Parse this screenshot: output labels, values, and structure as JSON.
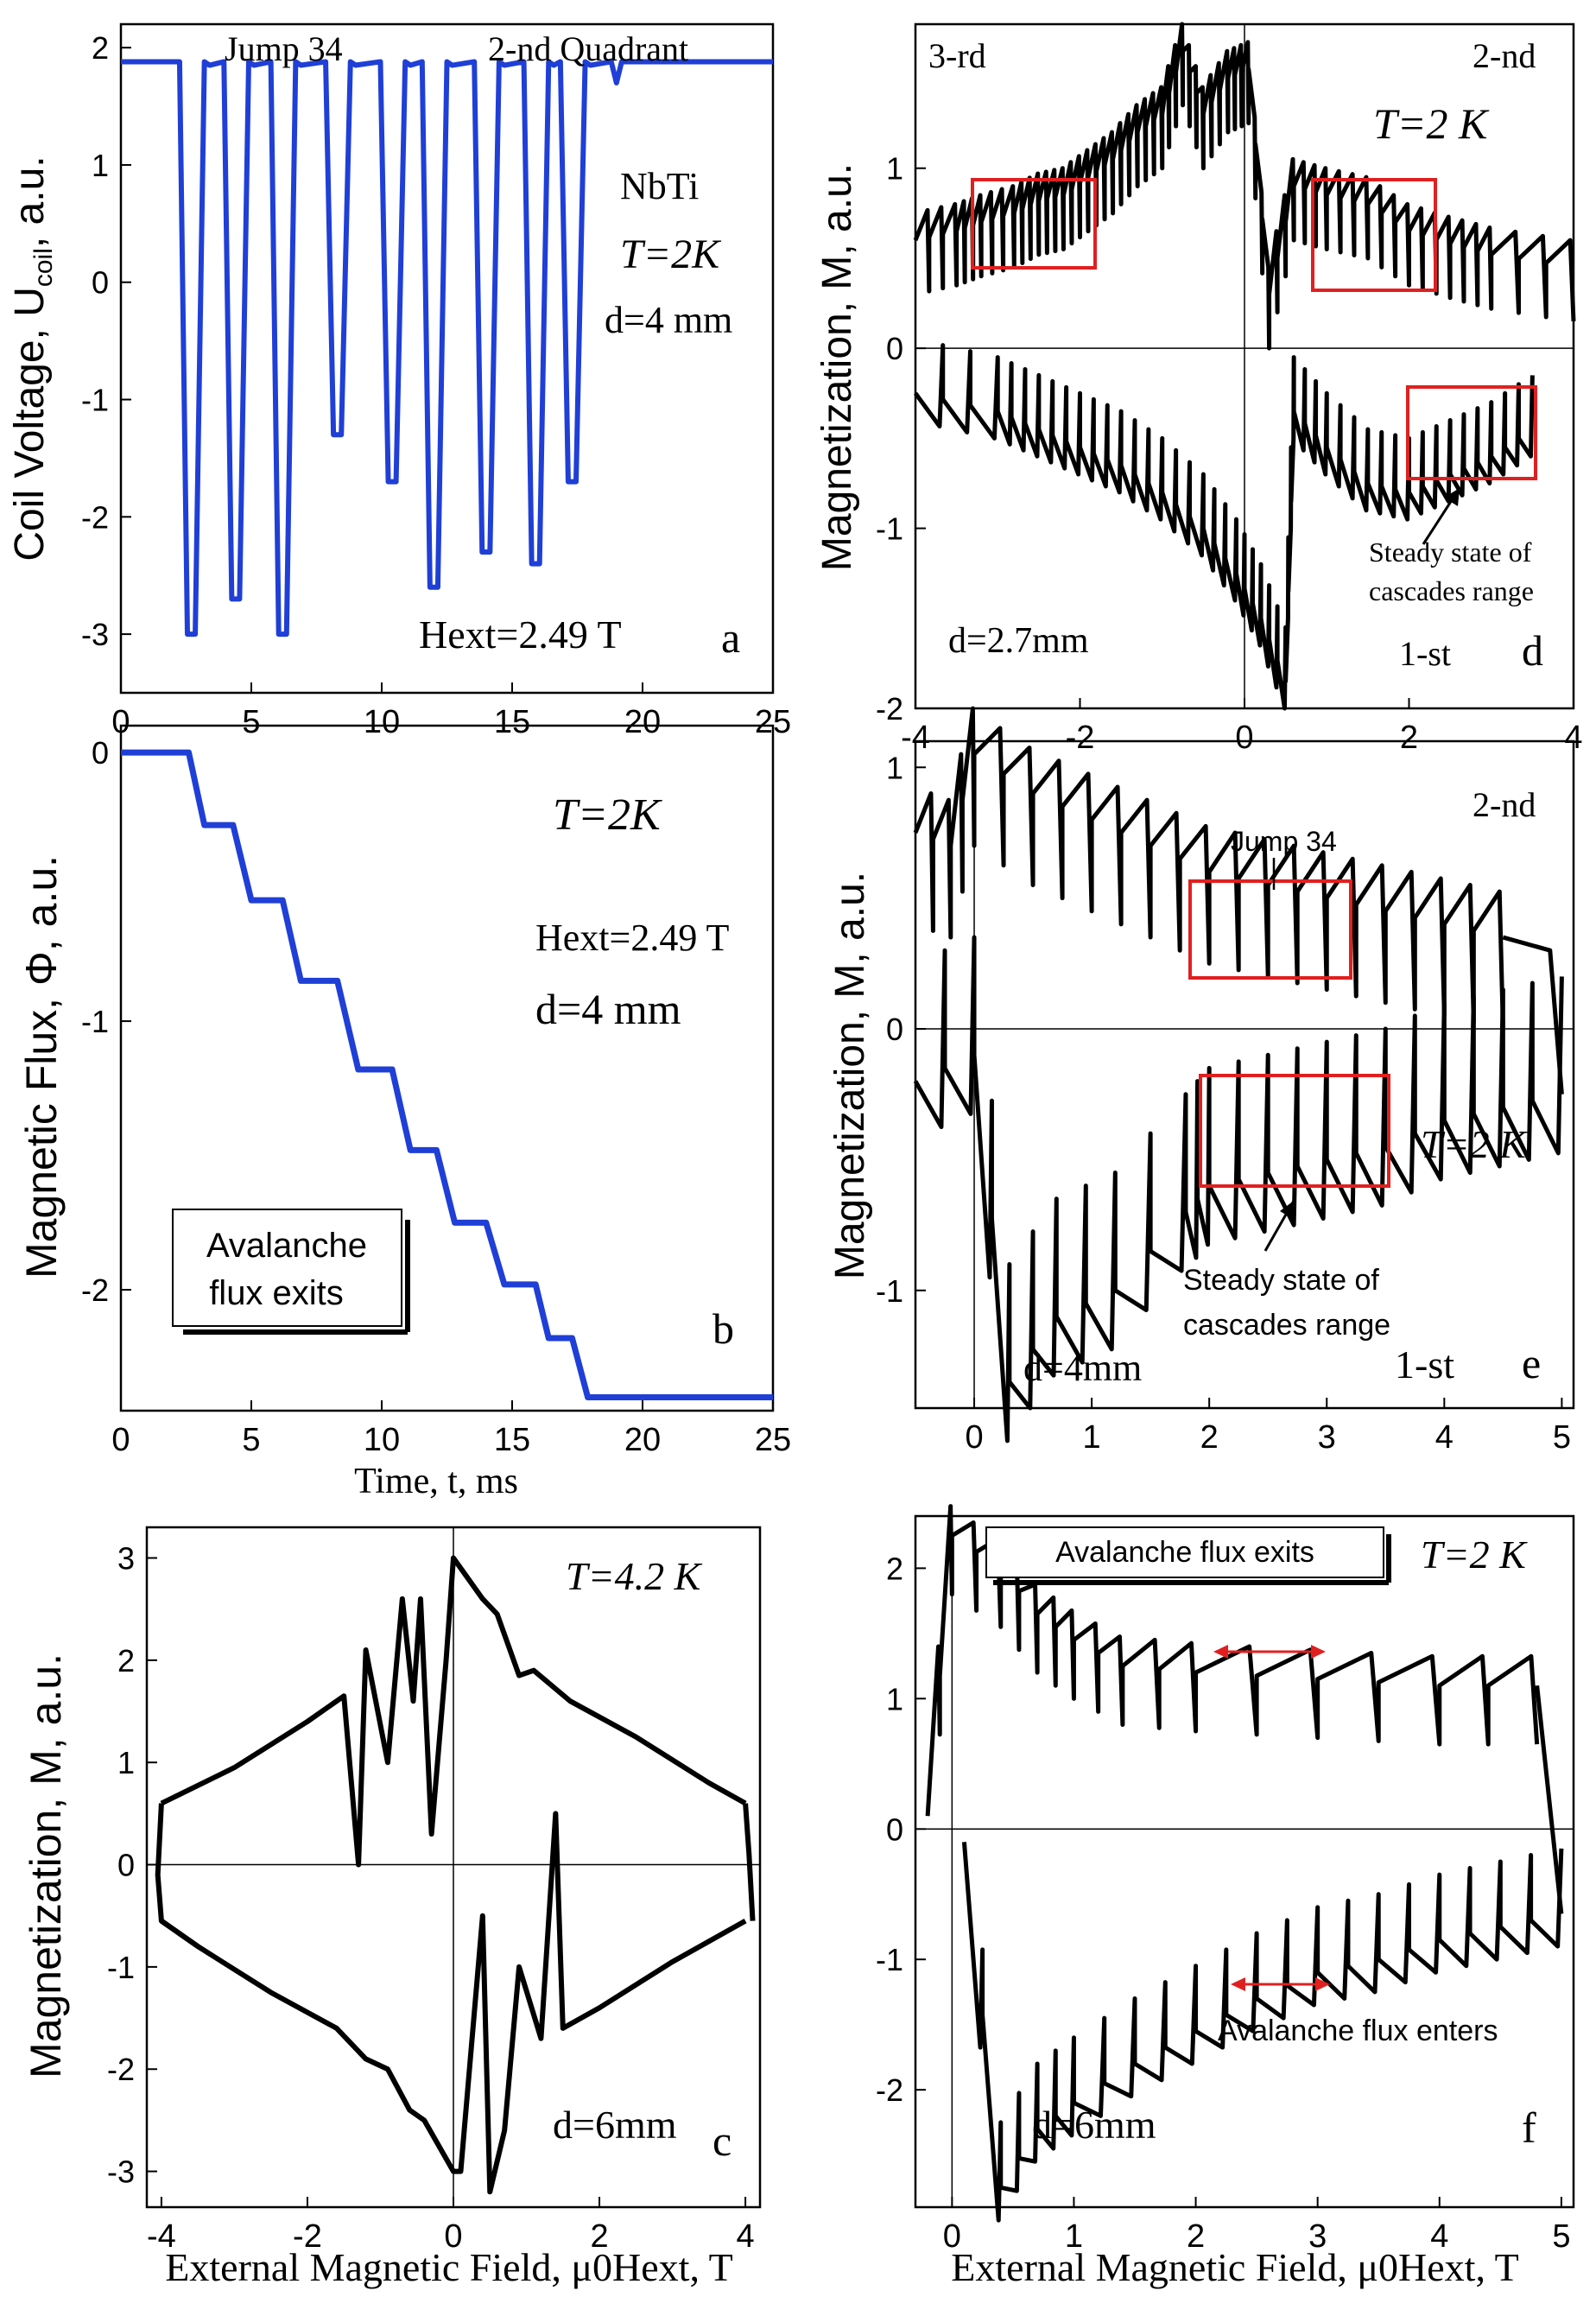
{
  "colors": {
    "blue": "#1f3fd6",
    "black": "#000000",
    "red": "#e02020"
  },
  "chart_data": [
    {
      "id": "a",
      "type": "line",
      "panel_letter": "a",
      "xlim": [
        0,
        25
      ],
      "ylim": [
        -3.5,
        2.2
      ],
      "xticks": [
        "0",
        "5",
        "10",
        "15",
        "20",
        "25"
      ],
      "yticks": [
        "-3",
        "-2",
        "-1",
        "0",
        "1",
        "2"
      ],
      "ylabel": "Coil Voltage, U",
      "ylabel_sub": "coil",
      "ylabel_tail": ", a.u.",
      "annotations": [
        "Jump 34",
        "2-nd Quadrant",
        "NbTi",
        "T=2K",
        "d=4 mm",
        "Hext=2.49 T"
      ],
      "series": [
        {
          "name": "Ucoil",
          "color": "blue",
          "spikes_x": [
            2.7,
            4.4,
            6.2,
            8.3,
            10.4,
            12.0,
            14.0,
            15.9,
            17.3
          ],
          "spikes_y": [
            -3.0,
            -2.7,
            -3.0,
            -1.3,
            -1.7,
            -2.6,
            -2.3,
            -2.4,
            -1.7
          ]
        }
      ]
    },
    {
      "id": "b",
      "type": "line",
      "panel_letter": "b",
      "xlim": [
        0,
        25
      ],
      "ylim": [
        -2.45,
        0.1
      ],
      "xticks": [
        "0",
        "5",
        "10",
        "15",
        "20",
        "25"
      ],
      "yticks": [
        "-2",
        "-1",
        "0"
      ],
      "xlabel": "Time, t, ms",
      "ylabel": "Magnetic Flux, Φ, a.u.",
      "annotations": [
        "T=2K",
        "Hext=2.49 T",
        "d=4 mm"
      ],
      "legend_box": [
        "Avalanche",
        "flux exits"
      ],
      "series": [
        {
          "name": "Phi",
          "color": "blue",
          "x": [
            0,
            2.6,
            3.2,
            4.3,
            5.0,
            6.2,
            6.9,
            8.3,
            9.1,
            10.4,
            11.1,
            12.1,
            12.8,
            14.0,
            14.7,
            15.9,
            16.4,
            17.3,
            17.9,
            25
          ],
          "y": [
            0,
            0,
            -0.27,
            -0.27,
            -0.55,
            -0.55,
            -0.85,
            -0.85,
            -1.18,
            -1.18,
            -1.48,
            -1.48,
            -1.75,
            -1.75,
            -1.98,
            -1.98,
            -2.18,
            -2.18,
            -2.4,
            -2.4
          ]
        }
      ]
    },
    {
      "id": "c",
      "type": "line",
      "panel_letter": "c",
      "xlim": [
        -4.2,
        4.2
      ],
      "ylim": [
        -3.35,
        3.3
      ],
      "xticks": [
        "-4",
        "-2",
        "0",
        "2",
        "4"
      ],
      "yticks": [
        "-3",
        "-2",
        "-1",
        "0",
        "1",
        "2",
        "3"
      ],
      "xlabel": "External Magnetic Field, μ0Hext, T",
      "ylabel": "Magnetization, M, a.u.",
      "annotations": [
        "T=4.2 K",
        "d=6mm"
      ],
      "series": [
        {
          "name": "M(H) loop",
          "color": "black",
          "upper_x": [
            -4.0,
            -3.0,
            -2.0,
            -1.5,
            -1.3,
            -1.2,
            -0.9,
            -0.7,
            -0.55,
            -0.45,
            -0.3,
            -0.1,
            0.0,
            0.4,
            0.6,
            0.9,
            1.1,
            1.6,
            2.5,
            3.5,
            4.0
          ],
          "upper_y": [
            0.6,
            0.95,
            1.4,
            1.65,
            0,
            2.1,
            1.0,
            2.6,
            1.6,
            2.6,
            0.3,
            2.0,
            3.0,
            2.6,
            2.45,
            1.85,
            1.9,
            1.6,
            1.25,
            0.8,
            0.6
          ],
          "lower_x": [
            4.0,
            3.0,
            2.0,
            1.5,
            1.4,
            1.2,
            0.9,
            0.7,
            0.5,
            0.4,
            0.1,
            0.0,
            -0.4,
            -0.6,
            -0.9,
            -1.2,
            -1.6,
            -2.5,
            -3.5,
            -4.0
          ],
          "lower_y": [
            -0.55,
            -0.95,
            -1.4,
            -1.6,
            0.5,
            -1.7,
            -1.0,
            -2.6,
            -3.2,
            -0.5,
            -3.0,
            -3.0,
            -2.5,
            -2.4,
            -2.0,
            -1.9,
            -1.6,
            -1.25,
            -0.8,
            -0.55
          ]
        }
      ]
    },
    {
      "id": "d",
      "type": "line",
      "panel_letter": "d",
      "xlim": [
        -4,
        4
      ],
      "ylim": [
        -2,
        1.8
      ],
      "xticks": [
        "-4",
        "-2",
        "0",
        "2",
        "4"
      ],
      "yticks": [
        "-2",
        "-1",
        "0",
        "1"
      ],
      "ylabel": "Magnetization, M, a.u.",
      "annotations": [
        "3-rd",
        "2-nd",
        "T=2 K",
        "d=2.7mm",
        "1-st",
        "Steady state of",
        "cascades range"
      ],
      "series": [
        {
          "name": "upper",
          "color": "black",
          "x": [
            -4,
            -3.5,
            -3.2,
            -2.8,
            -2.5,
            -2.2,
            -1.9,
            -1.6,
            -1.3,
            -1.0,
            -0.75,
            -0.5,
            -0.2,
            0.05,
            0.3,
            0.6,
            1.0,
            1.5,
            2.0,
            2.5,
            3.0,
            4.0
          ],
          "y": [
            0.6,
            0.65,
            0.7,
            0.75,
            0.82,
            0.85,
            0.95,
            1.05,
            1.2,
            1.3,
            1.65,
            1.3,
            1.5,
            1.55,
            0.3,
            0.9,
            0.85,
            0.8,
            0.65,
            0.58,
            0.52,
            0.45
          ]
        },
        {
          "name": "lower",
          "color": "black",
          "x": [
            -4,
            -3.0,
            -2.5,
            -2.0,
            -1.5,
            -1.0,
            -0.5,
            -0.1,
            0.2,
            0.5,
            0.6,
            1.0,
            1.5,
            2.0,
            2.5,
            3.0,
            3.5
          ],
          "y": [
            -0.25,
            -0.35,
            -0.45,
            -0.55,
            -0.65,
            -0.8,
            -1.0,
            -1.25,
            -1.5,
            -1.85,
            -0.35,
            -0.55,
            -0.75,
            -0.8,
            -0.7,
            -0.6,
            -0.45
          ]
        }
      ],
      "highlight_boxes": 3
    },
    {
      "id": "e",
      "type": "line",
      "panel_letter": "e",
      "xlim": [
        -0.5,
        5.1
      ],
      "ylim": [
        -1.45,
        1.1
      ],
      "xticks": [
        "0",
        "1",
        "2",
        "3",
        "4",
        "5"
      ],
      "yticks": [
        "-1",
        "0",
        "1"
      ],
      "ylabel": "Magnetization, M, a.u.",
      "annotations": [
        "Jump 34",
        "2-nd",
        "T=2 K",
        "Steady state of",
        "cascades range",
        "d=4mm",
        "1-st"
      ],
      "series": [
        {
          "name": "upper",
          "color": "black",
          "x": [
            -0.5,
            -0.2,
            0.0,
            0.5,
            1.0,
            1.5,
            2.0,
            2.5,
            3.0,
            3.5,
            4.0,
            4.5,
            4.9,
            5.0
          ],
          "y": [
            0.75,
            0.7,
            1.05,
            0.9,
            0.8,
            0.7,
            0.6,
            0.55,
            0.5,
            0.45,
            0.4,
            0.35,
            0.3,
            -0.25
          ]
        },
        {
          "name": "lower",
          "color": "black",
          "x": [
            -0.5,
            0.0,
            0.3,
            0.7,
            1.2,
            1.8,
            2.0,
            2.5,
            3.0,
            3.5,
            4.0,
            4.5,
            5.0
          ],
          "y": [
            -0.2,
            -0.1,
            -1.35,
            -1.1,
            -1.0,
            -0.7,
            -0.6,
            -0.55,
            -0.5,
            -0.45,
            -0.35,
            -0.3,
            -0.25
          ]
        }
      ],
      "highlight_boxes": 2
    },
    {
      "id": "f",
      "type": "line",
      "panel_letter": "f",
      "xlim": [
        -0.3,
        5.1
      ],
      "ylim": [
        -2.9,
        2.4
      ],
      "xticks": [
        "0",
        "1",
        "2",
        "3",
        "4",
        "5"
      ],
      "yticks": [
        "-2",
        "-1",
        "0",
        "1",
        "2"
      ],
      "xlabel": "External Magnetic Field, μ0Hext, T",
      "annotations": [
        "T=2 K",
        "d=6mm",
        "Avalanche flux enters"
      ],
      "legend_box": [
        "Avalanche flux exits"
      ],
      "series": [
        {
          "name": "upper",
          "color": "black",
          "x": [
            -0.2,
            0.0,
            0.4,
            0.7,
            1.0,
            1.4,
            2.0,
            3.0,
            4.0,
            4.8,
            5.0
          ],
          "y": [
            0.1,
            2.25,
            2.0,
            1.65,
            1.45,
            1.25,
            1.2,
            1.15,
            1.1,
            1.1,
            -0.65
          ]
        },
        {
          "name": "lower",
          "color": "black",
          "x": [
            0.1,
            0.4,
            0.7,
            1.0,
            1.5,
            2.0,
            2.5,
            3.0,
            3.5,
            4.0,
            4.5,
            5.0
          ],
          "y": [
            -0.1,
            -2.75,
            -2.3,
            -2.1,
            -1.8,
            -1.55,
            -1.3,
            -1.1,
            -1.0,
            -0.85,
            -0.75,
            -0.65
          ]
        }
      ]
    }
  ]
}
